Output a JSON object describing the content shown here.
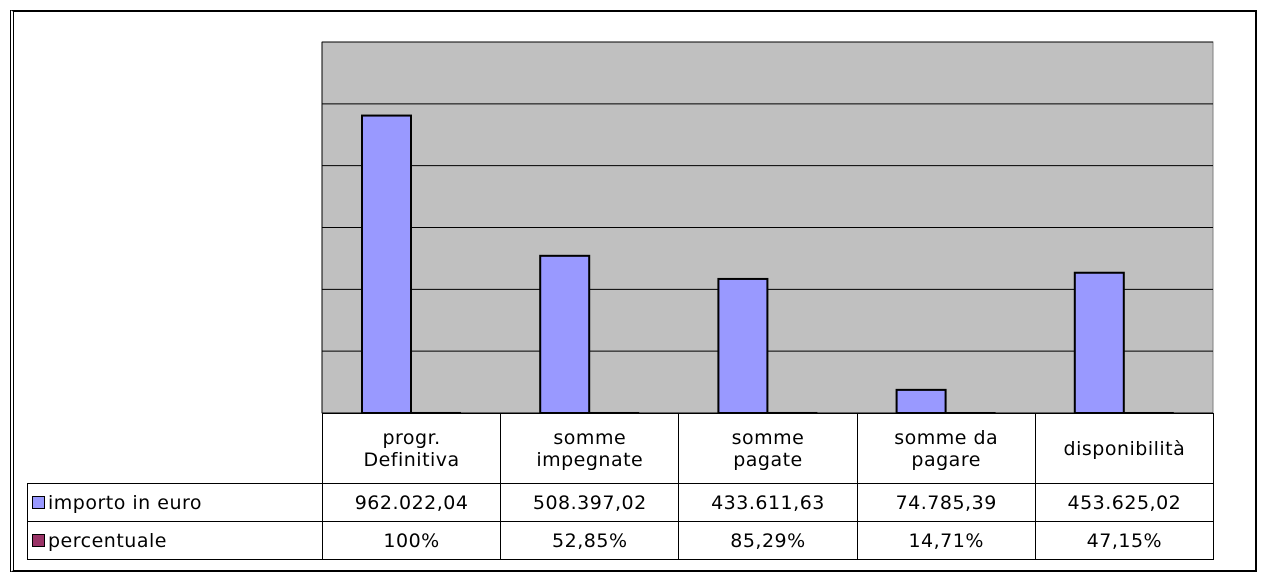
{
  "chart_data": {
    "type": "bar",
    "categories": [
      "progr.\nDefinitiva",
      "somme\nimpegnate",
      "somme\npagate",
      "somme da\npagare",
      "disponibilità"
    ],
    "series": [
      {
        "name": "importo in euro",
        "color": "#9999ff",
        "values": [
          962022.04,
          508397.02,
          433611.63,
          74785.39,
          453625.02
        ],
        "value_labels": [
          "962.022,04",
          "508.397,02",
          "433.611,63",
          "74.785,39",
          "453.625,02"
        ]
      },
      {
        "name": "percentuale",
        "color": "#993366",
        "values": [
          100,
          52.85,
          85.29,
          14.71,
          47.15
        ],
        "value_labels": [
          "100%",
          "52,85%",
          "85,29%",
          "14,71%",
          "47,15%"
        ]
      }
    ],
    "ylim": [
      0,
      1200000
    ],
    "yticks": [
      0,
      200000,
      400000,
      600000,
      800000,
      1000000,
      1200000
    ],
    "grid": true,
    "plot_background": "#c0c0c0"
  }
}
